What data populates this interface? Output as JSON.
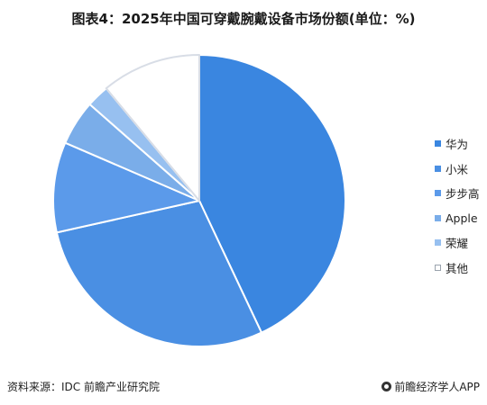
{
  "title": "图表4：2025年中国可穿戴腕戴设备市场份额(单位：%)",
  "source": "资料来源：IDC 前瞻产业研究院",
  "brand": "前瞻经济学人APP",
  "chart_data": {
    "type": "pie",
    "title": "图表4：2025年中国可穿戴腕戴设备市场份额(单位：%)",
    "start_angle_deg": 0,
    "direction": "clockwise",
    "legend_position": "right",
    "slices": [
      {
        "name": "华为",
        "value": 43.0,
        "color": "#3a86e0"
      },
      {
        "name": "小米",
        "value": 28.5,
        "color": "#4a8fe3"
      },
      {
        "name": "步步高",
        "value": 10.0,
        "color": "#5b9aea"
      },
      {
        "name": "Apple",
        "value": 5.0,
        "color": "#7aade9"
      },
      {
        "name": "荣耀",
        "value": 2.5,
        "color": "#97c0f0"
      },
      {
        "name": "其他",
        "value": 11.0,
        "color": "#ffffff"
      }
    ]
  }
}
